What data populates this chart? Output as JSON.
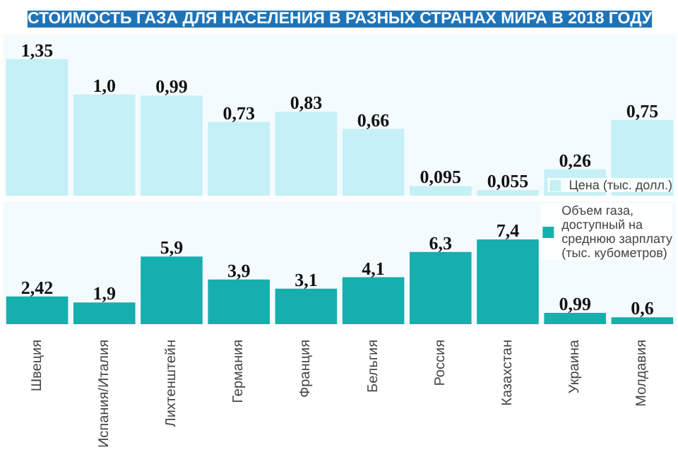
{
  "chart_data": [
    {
      "type": "bar",
      "title": "СТОИМОСТЬ ГАЗА ДЛЯ НАСЕЛЕНИЯ В РАЗНЫХ СТРАНАХ МИРА В 2018 ГОДУ",
      "categories": [
        null,
        null,
        null,
        null,
        null,
        null,
        null,
        null,
        null,
        null
      ],
      "series": [
        {
          "name": "Цена (тыс. долл.)",
          "color": "#c4f0f6",
          "values": [
            1.35,
            1.0,
            0.99,
            0.73,
            0.83,
            0.66,
            0.095,
            0.055,
            0.26,
            0.75
          ],
          "value_labels": [
            "1,35",
            "1,0",
            "0,99",
            "0,73",
            "0,83",
            "0,66",
            "0,095",
            "0,055",
            "0,26",
            "0,75"
          ]
        }
      ],
      "tick_labels": false,
      "legend": "bottom right",
      "grid": false
    },
    {
      "type": "bar",
      "categories": [
        "Швеция",
        "Испания/Италия",
        "Лихтенштейн",
        "Германия",
        "Франция",
        "Бельгия",
        "Россия",
        "Казахстан",
        "Украина",
        "Молдавия"
      ],
      "series": [
        {
          "name": "Объем газа, доступный на среднюю зарплату (тыс. кубометров)",
          "color": "#17aeae",
          "values": [
            2.42,
            1.9,
            5.9,
            3.9,
            3.1,
            4.1,
            6.3,
            7.4,
            0.99,
            0.6
          ],
          "value_labels": [
            "2,42",
            "1,9",
            "5,9",
            "3,9",
            "3,1",
            "4,1",
            "6,3",
            "7,4",
            "0,99",
            "0,6"
          ]
        }
      ],
      "tick_labels": "x",
      "legend": "top right",
      "grid": false
    }
  ]
}
